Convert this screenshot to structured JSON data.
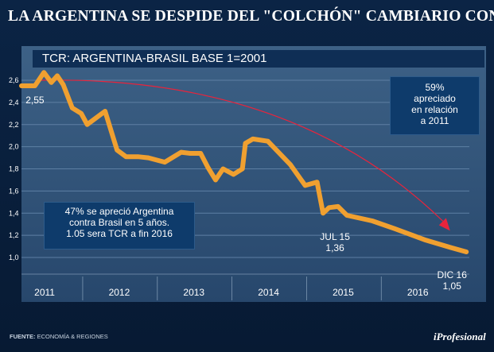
{
  "header": {
    "title": "LA ARGENTINA SE DESPIDE DEL \"COLCHÓN\" CAMBIARIO CON BRASIL"
  },
  "chart_data": {
    "type": "line",
    "title": "TCR: ARGENTINA-BRASIL BASE 1=2001",
    "xlabel": "",
    "ylabel": "",
    "ylim": [
      1.0,
      2.6
    ],
    "xlim": [
      2010.6,
      2016.6
    ],
    "y_ticks": [
      "2,6",
      "2,4",
      "2,2",
      "2,0",
      "1,8",
      "1,6",
      "1,4",
      "1,2",
      "1,0"
    ],
    "y_tick_values": [
      2.6,
      2.4,
      2.2,
      2.0,
      1.8,
      1.6,
      1.4,
      1.2,
      1.0
    ],
    "x_ticks": [
      "2011",
      "2012",
      "2013",
      "2014",
      "2015",
      "2016"
    ],
    "x_tick_values": [
      2010.91,
      2011.91,
      2012.91,
      2013.91,
      2014.91,
      2015.91
    ],
    "grid": true,
    "series": [
      {
        "name": "TCR Argentina-Brasil",
        "color": "#f0a030",
        "x": [
          2010.6,
          2010.78,
          2010.9,
          2011.0,
          2011.08,
          2011.16,
          2011.28,
          2011.4,
          2011.48,
          2011.72,
          2011.88,
          2012.0,
          2012.16,
          2012.3,
          2012.52,
          2012.74,
          2012.86,
          2013.0,
          2013.1,
          2013.2,
          2013.3,
          2013.44,
          2013.56,
          2013.6,
          2013.7,
          2013.9,
          2014.2,
          2014.4,
          2014.56,
          2014.64,
          2014.72,
          2014.84,
          2014.96,
          2015.3,
          2015.6,
          2016.0,
          2016.35,
          2016.56
        ],
        "y": [
          2.55,
          2.55,
          2.67,
          2.58,
          2.64,
          2.56,
          2.35,
          2.3,
          2.2,
          2.32,
          1.97,
          1.91,
          1.91,
          1.9,
          1.86,
          1.95,
          1.94,
          1.94,
          1.81,
          1.7,
          1.8,
          1.75,
          1.8,
          2.03,
          2.07,
          2.05,
          1.84,
          1.65,
          1.68,
          1.4,
          1.45,
          1.46,
          1.38,
          1.33,
          1.26,
          1.16,
          1.09,
          1.05
        ]
      }
    ],
    "annotations": [
      {
        "text": "2,55",
        "x": 2010.78,
        "y": 2.55
      },
      {
        "text": "JUL 15",
        "x": 2014.8,
        "y": 1.36
      },
      {
        "text": "1,36",
        "x": 2014.8,
        "y": 1.36
      },
      {
        "text": "DIC 16",
        "x": 2016.4,
        "y": 1.05
      },
      {
        "text": "1,05",
        "x": 2016.4,
        "y": 1.05
      }
    ],
    "trend_arrow": {
      "color": "#e8243c",
      "x": [
        2010.86,
        2016.31
      ],
      "y": [
        2.6,
        1.27
      ]
    },
    "boxes": {
      "argentina": [
        "47% se apreció Argentina",
        "contra Brasil en 5 años.",
        "1.05 sera TCR a fin 2016"
      ],
      "percent": [
        "59%",
        "apreciado",
        "en relación",
        "a 2011"
      ]
    }
  },
  "footer": {
    "source_label": "FUENTE:",
    "source_text": "ECONOMÍA & REGIONES",
    "brand": "iProfesional"
  }
}
